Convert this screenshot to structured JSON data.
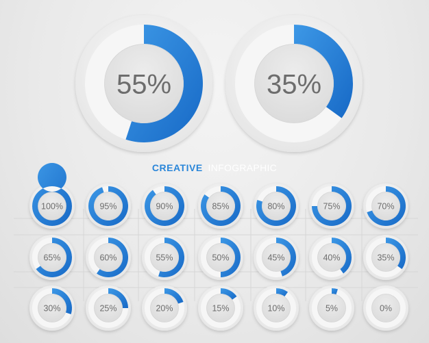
{
  "header": {
    "title_bold": "CREATIVE",
    "title_light": "INFOGRAPHIC"
  },
  "colors": {
    "accent": "#2a86d9",
    "accent_dark": "#1565c0",
    "track": "#f6f6f6",
    "center": "#e4e4e4",
    "text": "#6d6d6d",
    "title_light": "#ffffff"
  },
  "chart_data": [
    {
      "type": "pie",
      "variant": "donut-large",
      "values": [
        55,
        35
      ],
      "labels": [
        "55%",
        "35%"
      ]
    },
    {
      "type": "pie",
      "variant": "donut-small-grid",
      "values": [
        100,
        95,
        90,
        85,
        80,
        75,
        70,
        65,
        60,
        55,
        50,
        45,
        40,
        35,
        30,
        25,
        20,
        15,
        10,
        5,
        0
      ],
      "labels": [
        "100%",
        "95%",
        "90%",
        "85%",
        "80%",
        "75%",
        "70%",
        "65%",
        "60%",
        "55%",
        "50%",
        "45%",
        "40%",
        "35%",
        "30%",
        "25%",
        "20%",
        "15%",
        "10%",
        "5%",
        "0%"
      ]
    }
  ]
}
